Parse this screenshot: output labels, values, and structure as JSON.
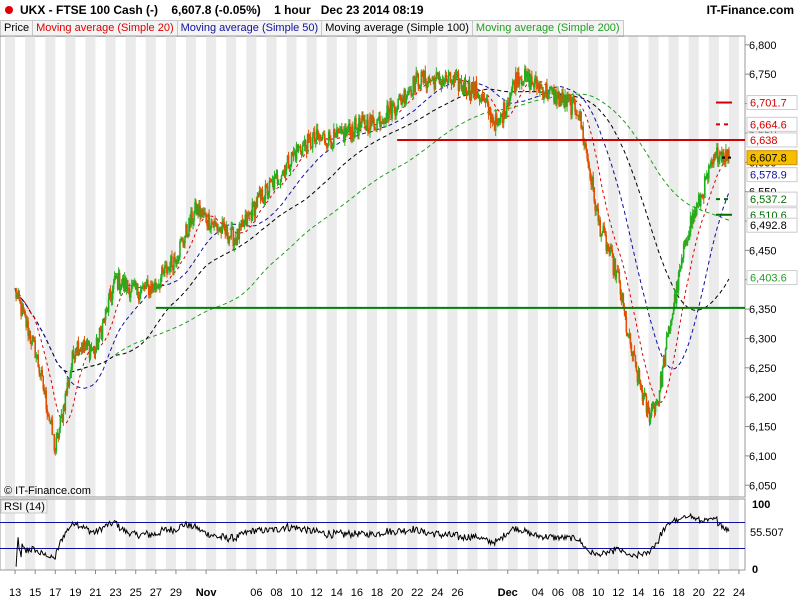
{
  "header": {
    "title": "UKX - FTSE 100 Cash (-)    6,607.8 (-0.05%)    1 hour   Dec 23 2014 08:19",
    "brand": "IT-Finance.com",
    "copyright": "© IT-Finance.com"
  },
  "legend": [
    {
      "label": "Price",
      "color": "#000000"
    },
    {
      "label": "Moving average (Simple 20)",
      "color": "#e00000"
    },
    {
      "label": "Moving average (Simple 50)",
      "color": "#1010a0"
    },
    {
      "label": "Moving average (Simple 100)",
      "color": "#000000"
    },
    {
      "label": "Moving average (Simple 200)",
      "color": "#20a020"
    }
  ],
  "colors": {
    "up": "#20b020",
    "down": "#e05000",
    "ma20": "#e00000",
    "ma50": "#1010a0",
    "ma100": "#000000",
    "ma200": "#20a020",
    "support": "#008000",
    "resistance": "#d00000"
  },
  "chart_data": [
    {
      "type": "line",
      "title": "UKX - FTSE 100 Cash (-)",
      "interval": "1 hour",
      "x_tick_labels": [
        "13",
        "15",
        "17",
        "19",
        "21",
        "23",
        "25",
        "27",
        "29",
        "Nov",
        "06",
        "08",
        "10",
        "12",
        "14",
        "16",
        "18",
        "20",
        "22",
        "24",
        "26",
        "Dec",
        "04",
        "06",
        "08",
        "10",
        "12",
        "14",
        "16",
        "18",
        "20",
        "22",
        "24"
      ],
      "y_tick_labels": [
        "6,800",
        "6,750",
        "6,700",
        "6,650",
        "6,600",
        "6,550",
        "6,500",
        "6,450",
        "6,400",
        "6,350",
        "6,300",
        "6,250",
        "6,200",
        "6,150",
        "6,100",
        "6,050"
      ],
      "ylim": [
        6030,
        6815
      ],
      "price_anchors": [
        {
          "x": "Oct 13",
          "y": 6380
        },
        {
          "x": "Oct 15",
          "y": 6280
        },
        {
          "x": "Oct 16",
          "y": 6200
        },
        {
          "x": "Oct 17",
          "y": 6110
        },
        {
          "x": "Oct 19",
          "y": 6290
        },
        {
          "x": "Oct 21",
          "y": 6280
        },
        {
          "x": "Oct 23",
          "y": 6400
        },
        {
          "x": "Oct 25",
          "y": 6380
        },
        {
          "x": "Oct 27",
          "y": 6390
        },
        {
          "x": "Oct 29",
          "y": 6440
        },
        {
          "x": "Oct 31",
          "y": 6520
        },
        {
          "x": "Nov 02",
          "y": 6490
        },
        {
          "x": "Nov 04",
          "y": 6470
        },
        {
          "x": "Nov 06",
          "y": 6530
        },
        {
          "x": "Nov 08",
          "y": 6570
        },
        {
          "x": "Nov 10",
          "y": 6620
        },
        {
          "x": "Nov 12",
          "y": 6640
        },
        {
          "x": "Nov 14",
          "y": 6640
        },
        {
          "x": "Nov 16",
          "y": 6660
        },
        {
          "x": "Nov 18",
          "y": 6670
        },
        {
          "x": "Nov 20",
          "y": 6700
        },
        {
          "x": "Nov 22",
          "y": 6740
        },
        {
          "x": "Nov 24",
          "y": 6740
        },
        {
          "x": "Nov 26",
          "y": 6735
        },
        {
          "x": "Nov 28",
          "y": 6720
        },
        {
          "x": "Nov 30",
          "y": 6660
        },
        {
          "x": "Dec 02",
          "y": 6750
        },
        {
          "x": "Dec 04",
          "y": 6730
        },
        {
          "x": "Dec 06",
          "y": 6710
        },
        {
          "x": "Dec 08",
          "y": 6690
        },
        {
          "x": "Dec 09",
          "y": 6600
        },
        {
          "x": "Dec 10",
          "y": 6500
        },
        {
          "x": "Dec 11",
          "y": 6450
        },
        {
          "x": "Dec 12",
          "y": 6400
        },
        {
          "x": "Dec 13",
          "y": 6300
        },
        {
          "x": "Dec 14",
          "y": 6230
        },
        {
          "x": "Dec 15",
          "y": 6170
        },
        {
          "x": "Dec 16",
          "y": 6200
        },
        {
          "x": "Dec 17",
          "y": 6310
        },
        {
          "x": "Dec 18",
          "y": 6400
        },
        {
          "x": "Dec 19",
          "y": 6490
        },
        {
          "x": "Dec 20",
          "y": 6530
        },
        {
          "x": "Dec 21",
          "y": 6580
        },
        {
          "x": "Dec 22",
          "y": 6620
        },
        {
          "x": "Dec 23",
          "y": 6607.8
        }
      ],
      "horizontal_lines": [
        {
          "name": "resistance",
          "y": 6638,
          "from": "Nov 20"
        },
        {
          "name": "support",
          "y": 6352,
          "from": "Oct 27"
        }
      ],
      "price_labels": [
        {
          "value": "6,701.7",
          "color": "#d00000",
          "marker": "solid"
        },
        {
          "value": "6,664.6",
          "color": "#d00000",
          "marker": "dashed"
        },
        {
          "value": "6,638",
          "color": "#d00000",
          "marker": "none"
        },
        {
          "value": "6,607.8",
          "color": "#000000",
          "marker": "current"
        },
        {
          "value": "6,578.9",
          "color": "#1010a0",
          "marker": "none"
        },
        {
          "value": "6,537.2",
          "color": "#007000",
          "marker": "dashed"
        },
        {
          "value": "6,510.6",
          "color": "#007000",
          "marker": "solid"
        },
        {
          "value": "6,492.8",
          "color": "#000000",
          "marker": "none"
        },
        {
          "value": "6,403.6",
          "color": "#20a020",
          "marker": "none"
        }
      ],
      "ma_ends": {
        "ma20": 6590,
        "ma50": 6578.9,
        "ma100": 6492.8,
        "ma200": 6403.6
      },
      "grid": false
    },
    {
      "type": "line",
      "title": "RSI (14)",
      "y_tick_labels": [
        "100",
        "0"
      ],
      "ylim": [
        0,
        100
      ],
      "levels": [
        70,
        30
      ],
      "last_value": "55.507"
    }
  ]
}
